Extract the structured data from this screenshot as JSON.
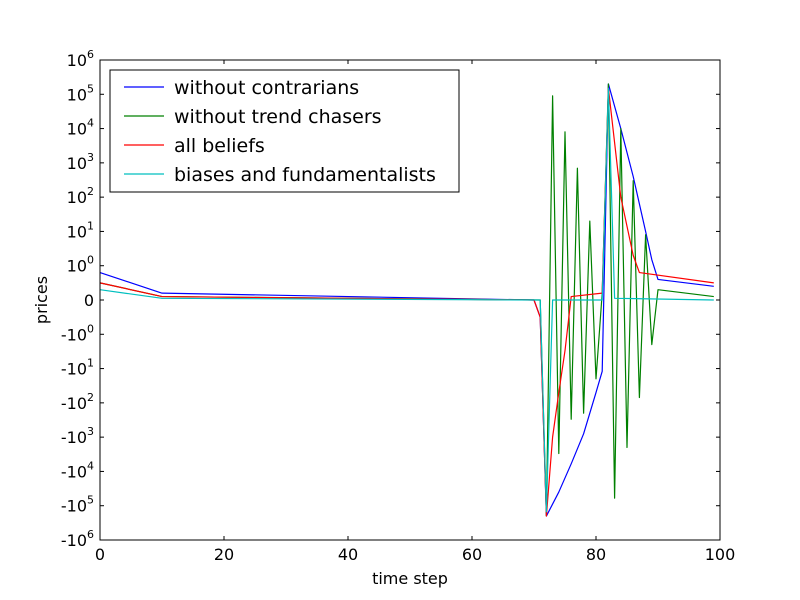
{
  "chart_data": {
    "type": "line",
    "xlabel": "time step",
    "ylabel": "prices",
    "xlim": [
      0,
      100
    ],
    "x_ticks": [
      0,
      20,
      40,
      60,
      80,
      100
    ],
    "y_scale": "symlog",
    "y_ticks": [
      {
        "value": 1000000,
        "base": "10",
        "exp": "6"
      },
      {
        "value": 100000,
        "base": "10",
        "exp": "5"
      },
      {
        "value": 10000,
        "base": "10",
        "exp": "4"
      },
      {
        "value": 1000,
        "base": "10",
        "exp": "3"
      },
      {
        "value": 100,
        "base": "10",
        "exp": "2"
      },
      {
        "value": 10,
        "base": "10",
        "exp": "1"
      },
      {
        "value": 1,
        "base": "10",
        "exp": "0"
      },
      {
        "value": 0,
        "base": "0",
        "exp": ""
      },
      {
        "value": -1,
        "base": "-10",
        "exp": "0"
      },
      {
        "value": -10,
        "base": "-10",
        "exp": "1"
      },
      {
        "value": -100,
        "base": "-10",
        "exp": "2"
      },
      {
        "value": -1000,
        "base": "-10",
        "exp": "3"
      },
      {
        "value": -10000,
        "base": "-10",
        "exp": "4"
      },
      {
        "value": -100000,
        "base": "-10",
        "exp": "5"
      },
      {
        "value": -1000000,
        "base": "-10",
        "exp": "6"
      }
    ],
    "legend": "upper-left",
    "grid": false,
    "series": [
      {
        "name": "without contrarians",
        "color": "#0000ff",
        "points": [
          [
            0,
            0.8
          ],
          [
            10,
            0.2
          ],
          [
            70,
            0
          ],
          [
            71,
            -0.5
          ],
          [
            72,
            -200000
          ],
          [
            74,
            -40000
          ],
          [
            76,
            -6000
          ],
          [
            78,
            -800
          ],
          [
            80,
            -50
          ],
          [
            81,
            -12
          ],
          [
            82,
            200000
          ],
          [
            84,
            10000
          ],
          [
            86,
            400
          ],
          [
            88,
            10
          ],
          [
            89,
            1.5
          ],
          [
            90,
            0.6
          ],
          [
            99,
            0.4
          ]
        ]
      },
      {
        "name": "without trend chasers",
        "color": "#008000",
        "points": [
          [
            0,
            0.5
          ],
          [
            10,
            0.1
          ],
          [
            71,
            0
          ],
          [
            72,
            -200000
          ],
          [
            73,
            90000
          ],
          [
            74,
            -3000
          ],
          [
            75,
            8000
          ],
          [
            76,
            -300
          ],
          [
            77,
            700
          ],
          [
            78,
            -200
          ],
          [
            79,
            20
          ],
          [
            80,
            -20
          ],
          [
            81,
            0.2
          ],
          [
            82,
            200000
          ],
          [
            83,
            -60000
          ],
          [
            84,
            10000
          ],
          [
            85,
            -2000
          ],
          [
            86,
            300
          ],
          [
            87,
            -70
          ],
          [
            88,
            8
          ],
          [
            89,
            -2
          ],
          [
            90,
            0.3
          ],
          [
            99,
            0.1
          ]
        ]
      },
      {
        "name": "all beliefs",
        "color": "#ff0000",
        "points": [
          [
            0,
            0.5
          ],
          [
            10,
            0.1
          ],
          [
            70,
            0
          ],
          [
            71,
            -0.5
          ],
          [
            72,
            -200000
          ],
          [
            73,
            -1000
          ],
          [
            74,
            -50
          ],
          [
            75,
            -3
          ],
          [
            76,
            0.1
          ],
          [
            81,
            0.2
          ],
          [
            82,
            150000
          ],
          [
            84,
            100
          ],
          [
            86,
            2
          ],
          [
            87,
            0.8
          ],
          [
            99,
            0.5
          ]
        ]
      },
      {
        "name": "biases and fundamentalists",
        "color": "#00bfbf",
        "points": [
          [
            0,
            0.3
          ],
          [
            10,
            0.05
          ],
          [
            71,
            0
          ],
          [
            72,
            -150000
          ],
          [
            73,
            0
          ],
          [
            81,
            0
          ],
          [
            82,
            150000
          ],
          [
            83,
            0.05
          ],
          [
            99,
            0
          ]
        ]
      }
    ]
  }
}
